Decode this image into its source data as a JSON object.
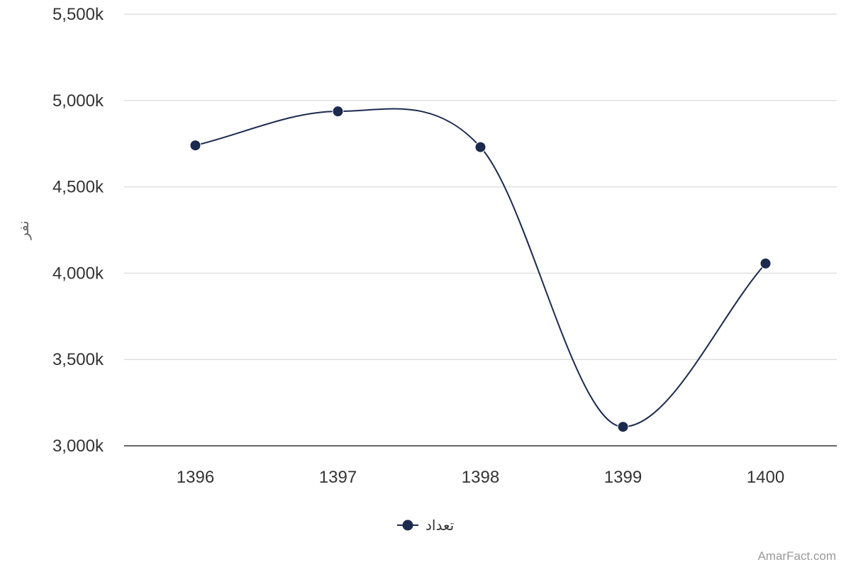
{
  "chart_data": {
    "type": "line",
    "smooth": true,
    "categories": [
      "1396",
      "1397",
      "1398",
      "1399",
      "1400"
    ],
    "series": [
      {
        "name": "تعداد",
        "values": [
          4740,
          4937,
          4730,
          3110,
          4056
        ]
      }
    ],
    "ylabel": "نفر",
    "ylim": [
      3000,
      5500
    ],
    "yticks": [
      3000,
      3500,
      4000,
      4500,
      5000,
      5500
    ],
    "ytick_labels": [
      "3,000k",
      "3,500k",
      "4,000k",
      "4,500k",
      "5,000k",
      "5,500k"
    ],
    "grid": true,
    "legend_position": "bottom-center"
  },
  "colors": {
    "series": "#1c2a4e",
    "grid": "#e0e0e0",
    "axis": "#333333"
  },
  "credit": "AmarFact.com"
}
